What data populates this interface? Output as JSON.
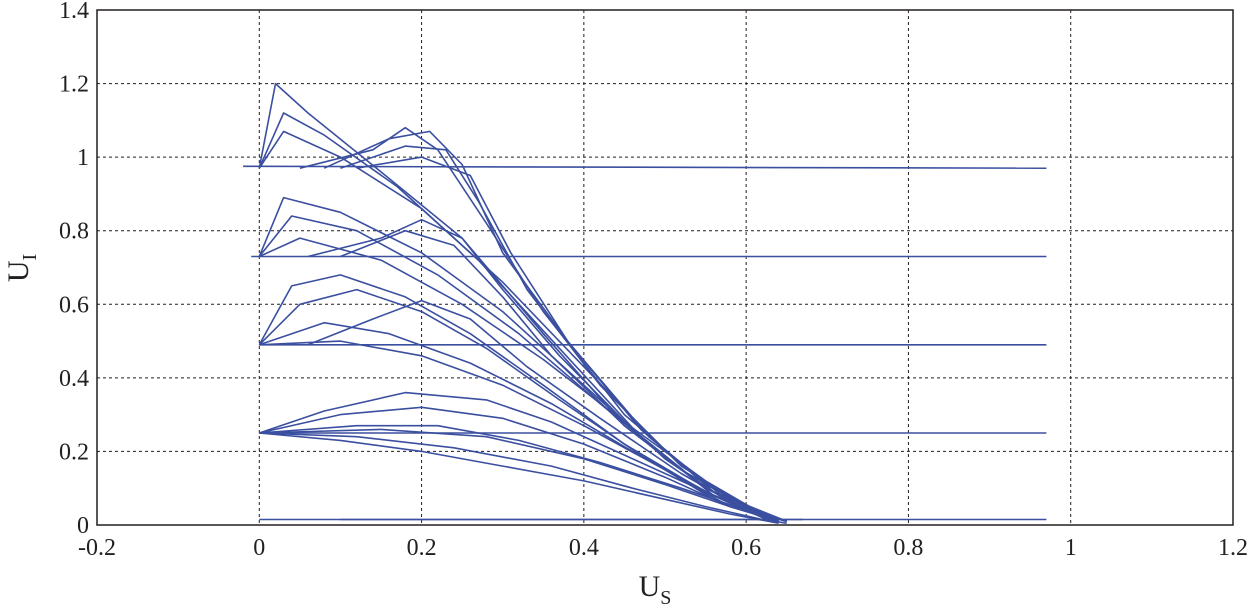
{
  "chart_data": {
    "type": "line",
    "title": "",
    "xlabel": "U",
    "xlabel_sub": "S",
    "ylabel": "U",
    "ylabel_sub": "I",
    "xlim": [
      -0.2,
      1.2
    ],
    "ylim": [
      0,
      1.4
    ],
    "xticks": [
      -0.2,
      0,
      0.2,
      0.4,
      0.6,
      0.8,
      1,
      1.2
    ],
    "xtick_labels": [
      "-0.2",
      "0",
      "0.2",
      "0.4",
      "0.6",
      "0.8",
      "1",
      "1.2"
    ],
    "yticks": [
      0,
      0.2,
      0.4,
      0.6,
      0.8,
      1,
      1.2,
      1.4
    ],
    "ytick_labels": [
      "0",
      "0.2",
      "0.4",
      "0.6",
      "0.8",
      "1",
      "1.2",
      "1.4"
    ],
    "grid": true,
    "color": "#3b4fa0",
    "levels": [
      0.015,
      0.25,
      0.49,
      0.73,
      0.97
    ],
    "series": [
      {
        "values": [
          [
            0.0,
            0.015
          ],
          [
            0.97,
            0.015
          ]
        ]
      },
      {
        "values": [
          [
            0.1,
            0.015
          ],
          [
            0.67,
            0.015
          ]
        ]
      },
      {
        "values": [
          [
            0.0,
            0.25
          ],
          [
            0.97,
            0.25
          ]
        ]
      },
      {
        "values": [
          [
            0.0,
            0.49
          ],
          [
            0.97,
            0.49
          ]
        ]
      },
      {
        "values": [
          [
            -0.01,
            0.73
          ],
          [
            0.97,
            0.73
          ]
        ]
      },
      {
        "values": [
          [
            -0.02,
            0.975
          ],
          [
            0.97,
            0.97
          ]
        ]
      },
      {
        "values": [
          [
            0.0,
            0.97
          ],
          [
            0.02,
            1.2
          ],
          [
            0.06,
            1.12
          ],
          [
            0.15,
            0.96
          ],
          [
            0.25,
            0.78
          ],
          [
            0.35,
            0.52
          ],
          [
            0.45,
            0.27
          ],
          [
            0.55,
            0.1
          ],
          [
            0.63,
            0.01
          ]
        ]
      },
      {
        "values": [
          [
            0.0,
            0.97
          ],
          [
            0.03,
            1.12
          ],
          [
            0.08,
            1.06
          ],
          [
            0.17,
            0.92
          ],
          [
            0.27,
            0.72
          ],
          [
            0.37,
            0.48
          ],
          [
            0.47,
            0.24
          ],
          [
            0.56,
            0.08
          ],
          [
            0.63,
            0.01
          ]
        ]
      },
      {
        "values": [
          [
            0.0,
            0.97
          ],
          [
            0.03,
            1.07
          ],
          [
            0.1,
            1.0
          ],
          [
            0.2,
            0.86
          ],
          [
            0.3,
            0.66
          ],
          [
            0.4,
            0.43
          ],
          [
            0.5,
            0.2
          ],
          [
            0.58,
            0.07
          ],
          [
            0.64,
            0.01
          ]
        ]
      },
      {
        "values": [
          [
            0.05,
            0.97
          ],
          [
            0.14,
            1.02
          ],
          [
            0.18,
            1.08
          ],
          [
            0.22,
            1.02
          ],
          [
            0.28,
            0.82
          ],
          [
            0.35,
            0.58
          ],
          [
            0.45,
            0.3
          ],
          [
            0.55,
            0.11
          ],
          [
            0.64,
            0.01
          ]
        ]
      },
      {
        "values": [
          [
            0.08,
            0.97
          ],
          [
            0.16,
            1.05
          ],
          [
            0.21,
            1.07
          ],
          [
            0.25,
            0.98
          ],
          [
            0.3,
            0.74
          ],
          [
            0.38,
            0.5
          ],
          [
            0.48,
            0.24
          ],
          [
            0.57,
            0.08
          ],
          [
            0.64,
            0.01
          ]
        ]
      },
      {
        "values": [
          [
            0.1,
            0.97
          ],
          [
            0.18,
            1.03
          ],
          [
            0.23,
            1.02
          ],
          [
            0.27,
            0.88
          ],
          [
            0.33,
            0.64
          ],
          [
            0.42,
            0.38
          ],
          [
            0.52,
            0.16
          ],
          [
            0.6,
            0.05
          ],
          [
            0.65,
            0.01
          ]
        ]
      },
      {
        "values": [
          [
            0.12,
            0.97
          ],
          [
            0.2,
            1.0
          ],
          [
            0.26,
            0.95
          ],
          [
            0.31,
            0.74
          ],
          [
            0.38,
            0.5
          ],
          [
            0.47,
            0.26
          ],
          [
            0.56,
            0.09
          ],
          [
            0.65,
            0.01
          ]
        ]
      },
      {
        "values": [
          [
            0.0,
            0.73
          ],
          [
            0.03,
            0.89
          ],
          [
            0.1,
            0.85
          ],
          [
            0.2,
            0.74
          ],
          [
            0.3,
            0.58
          ],
          [
            0.4,
            0.38
          ],
          [
            0.5,
            0.18
          ],
          [
            0.58,
            0.06
          ],
          [
            0.64,
            0.01
          ]
        ]
      },
      {
        "values": [
          [
            0.0,
            0.73
          ],
          [
            0.04,
            0.84
          ],
          [
            0.12,
            0.8
          ],
          [
            0.22,
            0.68
          ],
          [
            0.32,
            0.52
          ],
          [
            0.42,
            0.33
          ],
          [
            0.52,
            0.15
          ],
          [
            0.6,
            0.05
          ],
          [
            0.65,
            0.01
          ]
        ]
      },
      {
        "values": [
          [
            0.06,
            0.73
          ],
          [
            0.15,
            0.78
          ],
          [
            0.2,
            0.83
          ],
          [
            0.25,
            0.78
          ],
          [
            0.3,
            0.64
          ],
          [
            0.37,
            0.46
          ],
          [
            0.46,
            0.26
          ],
          [
            0.55,
            0.1
          ],
          [
            0.64,
            0.01
          ]
        ]
      },
      {
        "values": [
          [
            0.1,
            0.73
          ],
          [
            0.18,
            0.8
          ],
          [
            0.24,
            0.76
          ],
          [
            0.3,
            0.62
          ],
          [
            0.36,
            0.46
          ],
          [
            0.45,
            0.27
          ],
          [
            0.55,
            0.1
          ],
          [
            0.64,
            0.01
          ]
        ]
      },
      {
        "values": [
          [
            0.0,
            0.73
          ],
          [
            0.05,
            0.78
          ],
          [
            0.15,
            0.72
          ],
          [
            0.25,
            0.6
          ],
          [
            0.35,
            0.45
          ],
          [
            0.45,
            0.28
          ],
          [
            0.55,
            0.12
          ],
          [
            0.62,
            0.03
          ],
          [
            0.65,
            0.01
          ]
        ]
      },
      {
        "values": [
          [
            0.0,
            0.49
          ],
          [
            0.04,
            0.65
          ],
          [
            0.1,
            0.68
          ],
          [
            0.18,
            0.62
          ],
          [
            0.26,
            0.52
          ],
          [
            0.35,
            0.38
          ],
          [
            0.45,
            0.22
          ],
          [
            0.55,
            0.09
          ],
          [
            0.64,
            0.01
          ]
        ]
      },
      {
        "values": [
          [
            0.0,
            0.49
          ],
          [
            0.05,
            0.6
          ],
          [
            0.12,
            0.64
          ],
          [
            0.2,
            0.58
          ],
          [
            0.28,
            0.48
          ],
          [
            0.37,
            0.34
          ],
          [
            0.47,
            0.19
          ],
          [
            0.56,
            0.07
          ],
          [
            0.64,
            0.01
          ]
        ]
      },
      {
        "values": [
          [
            0.06,
            0.49
          ],
          [
            0.14,
            0.56
          ],
          [
            0.2,
            0.61
          ],
          [
            0.26,
            0.56
          ],
          [
            0.33,
            0.43
          ],
          [
            0.42,
            0.29
          ],
          [
            0.52,
            0.14
          ],
          [
            0.6,
            0.04
          ],
          [
            0.65,
            0.01
          ]
        ]
      },
      {
        "values": [
          [
            0.0,
            0.49
          ],
          [
            0.08,
            0.55
          ],
          [
            0.16,
            0.52
          ],
          [
            0.26,
            0.44
          ],
          [
            0.36,
            0.33
          ],
          [
            0.46,
            0.2
          ],
          [
            0.56,
            0.08
          ],
          [
            0.64,
            0.01
          ]
        ]
      },
      {
        "values": [
          [
            0.0,
            0.49
          ],
          [
            0.1,
            0.5
          ],
          [
            0.2,
            0.46
          ],
          [
            0.3,
            0.38
          ],
          [
            0.4,
            0.27
          ],
          [
            0.5,
            0.15
          ],
          [
            0.58,
            0.05
          ],
          [
            0.65,
            0.01
          ]
        ]
      },
      {
        "values": [
          [
            0.0,
            0.25
          ],
          [
            0.08,
            0.31
          ],
          [
            0.18,
            0.36
          ],
          [
            0.28,
            0.34
          ],
          [
            0.36,
            0.28
          ],
          [
            0.44,
            0.2
          ],
          [
            0.52,
            0.12
          ],
          [
            0.6,
            0.04
          ],
          [
            0.64,
            0.01
          ]
        ]
      },
      {
        "values": [
          [
            0.0,
            0.25
          ],
          [
            0.1,
            0.3
          ],
          [
            0.2,
            0.32
          ],
          [
            0.3,
            0.29
          ],
          [
            0.4,
            0.22
          ],
          [
            0.5,
            0.13
          ],
          [
            0.58,
            0.05
          ],
          [
            0.64,
            0.01
          ]
        ]
      },
      {
        "values": [
          [
            0.0,
            0.25
          ],
          [
            0.12,
            0.27
          ],
          [
            0.22,
            0.27
          ],
          [
            0.32,
            0.23
          ],
          [
            0.42,
            0.17
          ],
          [
            0.52,
            0.1
          ],
          [
            0.6,
            0.04
          ],
          [
            0.65,
            0.01
          ]
        ]
      },
      {
        "values": [
          [
            0.0,
            0.25
          ],
          [
            0.1,
            0.23
          ],
          [
            0.2,
            0.2
          ],
          [
            0.3,
            0.16
          ],
          [
            0.4,
            0.12
          ],
          [
            0.5,
            0.07
          ],
          [
            0.58,
            0.03
          ],
          [
            0.64,
            0.005
          ]
        ]
      },
      {
        "values": [
          [
            0.0,
            0.25
          ],
          [
            0.12,
            0.24
          ],
          [
            0.24,
            0.21
          ],
          [
            0.36,
            0.16
          ],
          [
            0.46,
            0.1
          ],
          [
            0.55,
            0.05
          ],
          [
            0.62,
            0.015
          ],
          [
            0.65,
            0.005
          ]
        ]
      },
      {
        "values": [
          [
            0.0,
            0.25
          ],
          [
            0.15,
            0.26
          ],
          [
            0.28,
            0.24
          ],
          [
            0.4,
            0.18
          ],
          [
            0.5,
            0.11
          ],
          [
            0.58,
            0.05
          ],
          [
            0.64,
            0.01
          ]
        ]
      }
    ]
  }
}
